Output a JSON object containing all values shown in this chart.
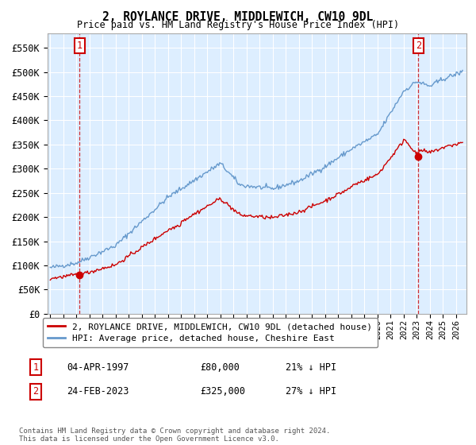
{
  "title": "2, ROYLANCE DRIVE, MIDDLEWICH, CW10 9DL",
  "subtitle": "Price paid vs. HM Land Registry's House Price Index (HPI)",
  "ylabel_ticks": [
    "£0",
    "£50K",
    "£100K",
    "£150K",
    "£200K",
    "£250K",
    "£300K",
    "£350K",
    "£400K",
    "£450K",
    "£500K",
    "£550K"
  ],
  "ytick_values": [
    0,
    50000,
    100000,
    150000,
    200000,
    250000,
    300000,
    350000,
    400000,
    450000,
    500000,
    550000
  ],
  "xmin": 1994.8,
  "xmax": 2026.8,
  "ymin": 0,
  "ymax": 580000,
  "bg_color": "#ddeeff",
  "grid_color": "#ffffff",
  "hpi_color": "#6699cc",
  "price_color": "#cc0000",
  "sale1_x": 1997.25,
  "sale1_y": 80000,
  "sale1_label": "1",
  "sale1_date": "04-APR-1997",
  "sale1_price": "£80,000",
  "sale1_hpi": "21% ↓ HPI",
  "sale2_x": 2023.12,
  "sale2_y": 325000,
  "sale2_label": "2",
  "sale2_date": "24-FEB-2023",
  "sale2_price": "£325,000",
  "sale2_hpi": "27% ↓ HPI",
  "legend_line1": "2, ROYLANCE DRIVE, MIDDLEWICH, CW10 9DL (detached house)",
  "legend_line2": "HPI: Average price, detached house, Cheshire East",
  "footer": "Contains HM Land Registry data © Crown copyright and database right 2024.\nThis data is licensed under the Open Government Licence v3.0.",
  "xticks": [
    1995,
    1996,
    1997,
    1998,
    1999,
    2000,
    2001,
    2002,
    2003,
    2004,
    2005,
    2006,
    2007,
    2008,
    2009,
    2010,
    2011,
    2012,
    2013,
    2014,
    2015,
    2016,
    2017,
    2018,
    2019,
    2020,
    2021,
    2022,
    2023,
    2024,
    2025,
    2026
  ]
}
